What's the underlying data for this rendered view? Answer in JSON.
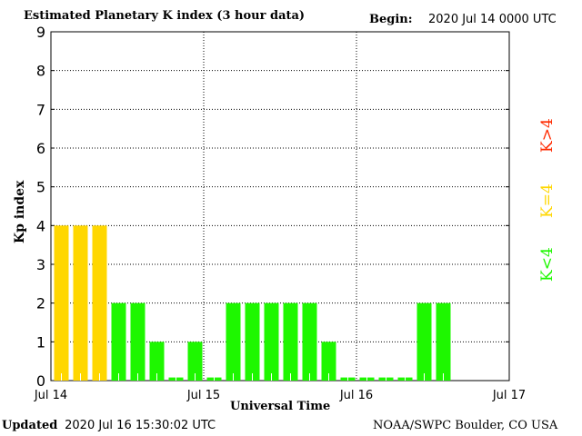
{
  "chart_data": {
    "type": "bar",
    "title": "Estimated Planetary K index (3 hour data)",
    "begin_label": "Begin:",
    "begin_value": "2020 Jul 14 0000 UTC",
    "xlabel": "Universal Time",
    "ylabel": "Kp index",
    "ylim": [
      0,
      9
    ],
    "yticks": [
      "0",
      "1",
      "2",
      "3",
      "4",
      "5",
      "6",
      "7",
      "8",
      "9"
    ],
    "xticks": [
      "Jul 14",
      "Jul 15",
      "Jul 16",
      "Jul 17"
    ],
    "slots": 24,
    "values": [
      4,
      4,
      4,
      2,
      2,
      1,
      0,
      1,
      0,
      2,
      2,
      2,
      2,
      2,
      1,
      0,
      0,
      0,
      0,
      2,
      2
    ],
    "colors": {
      "low": "#1ef700",
      "eq": "#ffd700",
      "high": "#ff2a00"
    },
    "legend": [
      {
        "label": "K<4",
        "color": "#1ef700"
      },
      {
        "label": "K=4",
        "color": "#ffd700"
      },
      {
        "label": "K>4",
        "color": "#ff2a00"
      }
    ],
    "grid": true
  },
  "footer": {
    "updated_label": "Updated",
    "updated_value": "2020 Jul 16 15:30:02 UTC",
    "source": "NOAA/SWPC Boulder, CO USA"
  }
}
